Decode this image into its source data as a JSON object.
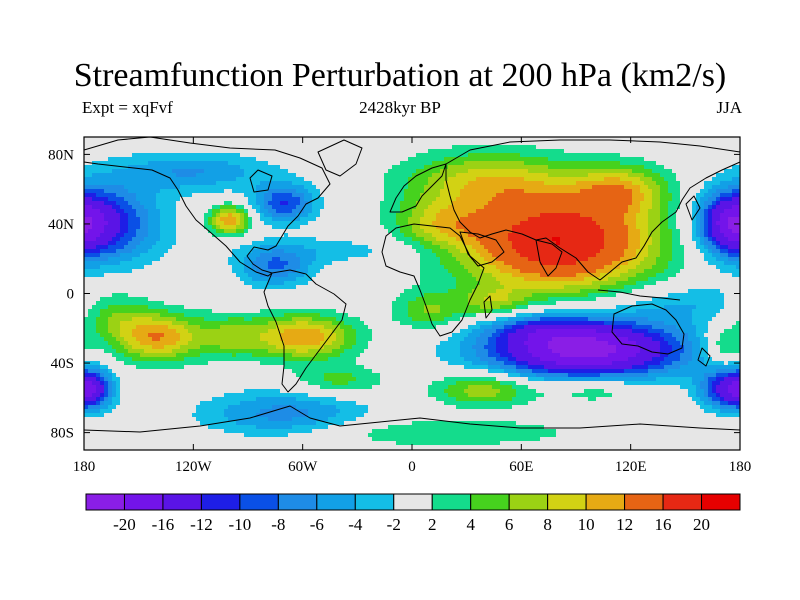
{
  "chart_data": {
    "type": "heatmap",
    "title": "Streamfunction Perturbation at 200 hPa (km2/s)",
    "subtitle_left": "Expt = xqFvf",
    "subtitle_center": "2428kyr BP",
    "subtitle_right": "JJA",
    "x_ticks": [
      "180",
      "120W",
      "60W",
      "0",
      "60E",
      "120E",
      "180"
    ],
    "x_tick_lon": [
      -180,
      -120,
      -60,
      0,
      60,
      120,
      180
    ],
    "y_ticks": [
      "80N",
      "40N",
      "0",
      "40S",
      "80S"
    ],
    "y_tick_lat": [
      80,
      40,
      0,
      -40,
      -80
    ],
    "xlim": [
      -180,
      180
    ],
    "ylim": [
      -90,
      90
    ],
    "colorbar_labels": [
      "-20",
      "-16",
      "-12",
      "-10",
      "-8",
      "-6",
      "-4",
      "-2",
      "2",
      "4",
      "6",
      "8",
      "10",
      "12",
      "16",
      "20"
    ],
    "colorbar_colors": [
      "#8a1ee6",
      "#7314ea",
      "#5a14e6",
      "#1e1ee6",
      "#0a50e6",
      "#1e8ce6",
      "#12a0e6",
      "#14bee6",
      "#e6e6e6",
      "#14dc8c",
      "#46d21e",
      "#9bd214",
      "#d2d214",
      "#e6aa14",
      "#e66414",
      "#e62814",
      "#e60000"
    ],
    "field_features": [
      {
        "lon": 80,
        "lat": 30,
        "sx": 38,
        "sy": 20,
        "amp": 20
      },
      {
        "lon": 40,
        "lat": 65,
        "sx": 32,
        "sy": 12,
        "amp": 8
      },
      {
        "lon": 115,
        "lat": 60,
        "sx": 18,
        "sy": 10,
        "amp": 8
      },
      {
        "lon": 15,
        "lat": 40,
        "sx": 18,
        "sy": 10,
        "amp": 6
      },
      {
        "lon": -100,
        "lat": 42,
        "sx": 8,
        "sy": 6,
        "amp": 12
      },
      {
        "lon": -70,
        "lat": 52,
        "sx": 12,
        "sy": 8,
        "amp": -10
      },
      {
        "lon": -75,
        "lat": 15,
        "sx": 14,
        "sy": 8,
        "amp": -8
      },
      {
        "lon": -120,
        "lat": 70,
        "sx": 30,
        "sy": 8,
        "amp": -6
      },
      {
        "lon": -170,
        "lat": 40,
        "sx": 22,
        "sy": 16,
        "amp": -12
      },
      {
        "lon": 175,
        "lat": 40,
        "sx": 12,
        "sy": 12,
        "amp": -12
      },
      {
        "lon": -40,
        "lat": 25,
        "sx": 40,
        "sy": 6,
        "amp": -3
      },
      {
        "lon": 150,
        "lat": -5,
        "sx": 30,
        "sy": 8,
        "amp": -4
      },
      {
        "lon": 95,
        "lat": -32,
        "sx": 38,
        "sy": 12,
        "amp": -22
      },
      {
        "lon": 70,
        "lat": -20,
        "sx": 20,
        "sy": 6,
        "amp": -5
      },
      {
        "lon": 10,
        "lat": -10,
        "sx": 14,
        "sy": 8,
        "amp": 6
      },
      {
        "lon": 45,
        "lat": -5,
        "sx": 12,
        "sy": 6,
        "amp": 6
      },
      {
        "lon": -140,
        "lat": -25,
        "sx": 18,
        "sy": 10,
        "amp": 12
      },
      {
        "lon": -60,
        "lat": -25,
        "sx": 20,
        "sy": 9,
        "amp": 12
      },
      {
        "lon": -100,
        "lat": -25,
        "sx": 12,
        "sy": 9,
        "amp": 5
      },
      {
        "lon": -165,
        "lat": -10,
        "sx": 14,
        "sy": 10,
        "amp": 5
      },
      {
        "lon": -175,
        "lat": -55,
        "sx": 8,
        "sy": 8,
        "amp": -12
      },
      {
        "lon": 172,
        "lat": -55,
        "sx": 10,
        "sy": 8,
        "amp": -12
      },
      {
        "lon": 172,
        "lat": -30,
        "sx": 8,
        "sy": 8,
        "amp": 6
      },
      {
        "lon": 100,
        "lat": -55,
        "sx": 20,
        "sy": 6,
        "amp": 5
      },
      {
        "lon": 40,
        "lat": -55,
        "sx": 20,
        "sy": 7,
        "amp": 8
      },
      {
        "lon": -70,
        "lat": -70,
        "sx": 32,
        "sy": 10,
        "amp": -7
      },
      {
        "lon": -40,
        "lat": -50,
        "sx": 18,
        "sy": 6,
        "amp": 5
      },
      {
        "lon": 10,
        "lat": -80,
        "sx": 60,
        "sy": 6,
        "amp": 4
      }
    ]
  }
}
